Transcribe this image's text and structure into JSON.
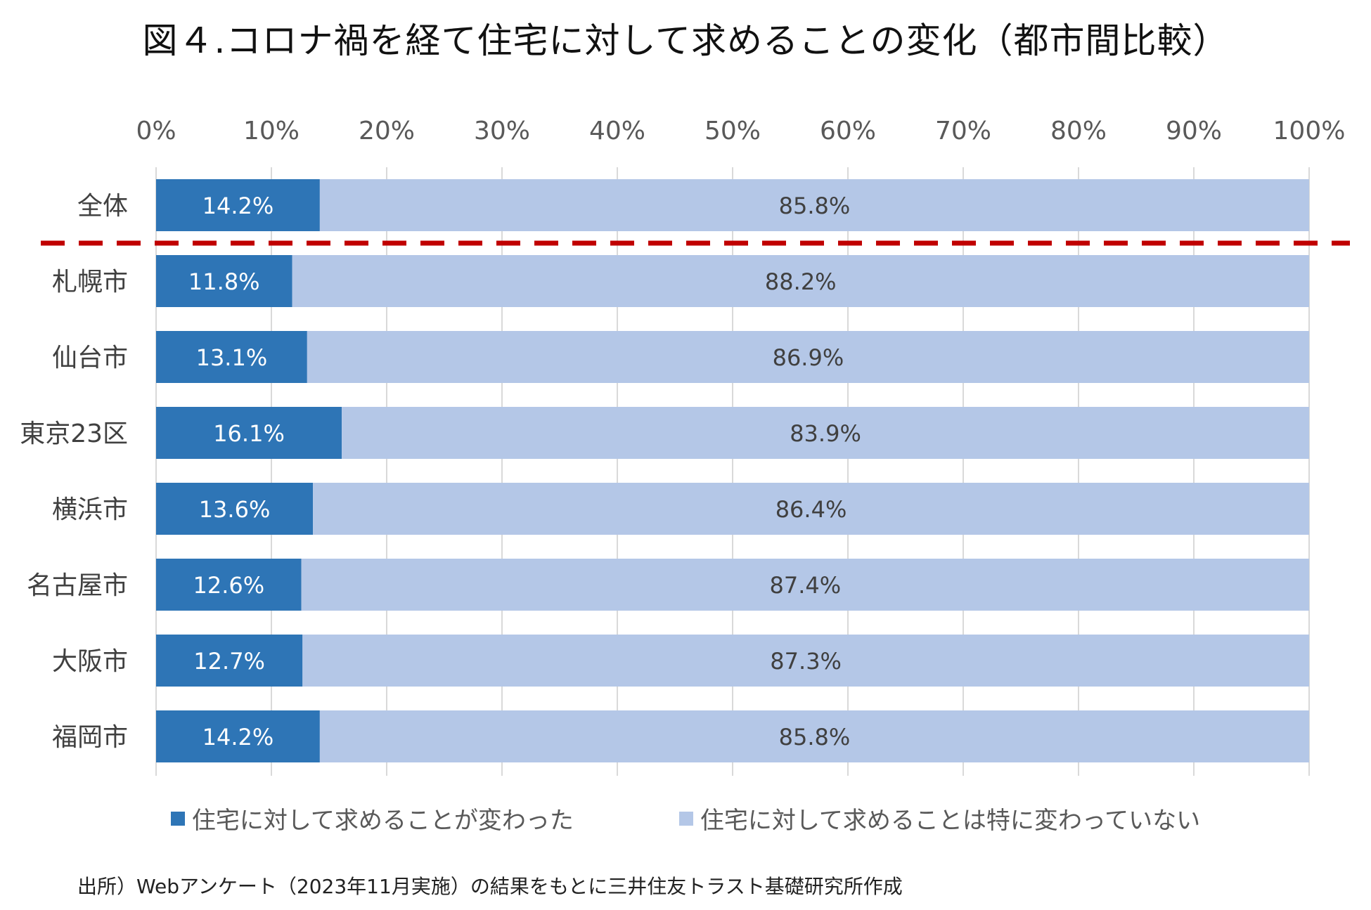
{
  "title": "図４.コロナ禍を経て住宅に対して求めることの変化（都市間比較）",
  "source": "出所）Webアンケート（2023年11月実施）の結果をもとに三井住友トラスト基礎研究所作成",
  "colors": {
    "changed": "#2E75B6",
    "unchanged": "#B4C7E7",
    "divider": "#C00000",
    "grid": "#D9D9D9"
  },
  "chart_data": {
    "type": "bar",
    "orientation": "horizontal",
    "stacked": "100%",
    "categories": [
      "全体",
      "札幌市",
      "仙台市",
      "東京23区",
      "横浜市",
      "名古屋市",
      "大阪市",
      "福岡市"
    ],
    "series": [
      {
        "name": "住宅に対して求めることが変わった",
        "values": [
          14.2,
          11.8,
          13.1,
          16.1,
          13.6,
          12.6,
          12.7,
          14.2
        ]
      },
      {
        "name": "住宅に対して求めることは特に変わっていない",
        "values": [
          85.8,
          88.2,
          86.9,
          83.9,
          86.4,
          87.4,
          87.3,
          85.8
        ]
      }
    ],
    "data_labels": [
      [
        "14.2%",
        "11.8%",
        "13.1%",
        "16.1%",
        "13.6%",
        "12.6%",
        "12.7%",
        "14.2%"
      ],
      [
        "85.8%",
        "88.2%",
        "86.9%",
        "83.9%",
        "86.4%",
        "87.4%",
        "87.3%",
        "85.8%"
      ]
    ],
    "xlim": [
      0,
      100
    ],
    "xticks": [
      "0%",
      "10%",
      "20%",
      "30%",
      "40%",
      "50%",
      "60%",
      "70%",
      "80%",
      "90%",
      "100%"
    ],
    "axis_position": "top",
    "grid": true,
    "legend": "bottom",
    "divider_after_category": "全体"
  }
}
